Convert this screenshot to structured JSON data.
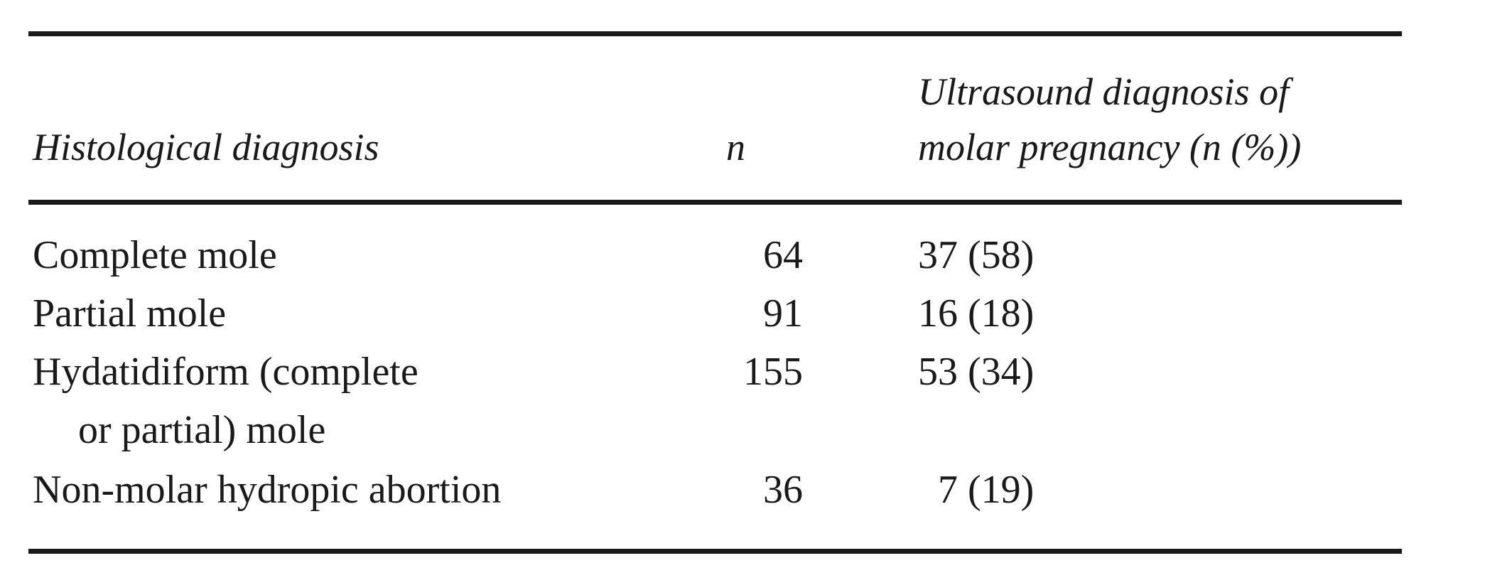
{
  "table": {
    "headers": {
      "histological_diagnosis": "Histological diagnosis",
      "n": "n",
      "ultrasound_line1": "Ultrasound diagnosis of",
      "ultrasound_line2": "molar pregnancy (n (%))"
    },
    "rows": [
      {
        "label": "Complete mole",
        "label_cont": "",
        "n": "64",
        "ultrasound": "37 (58)"
      },
      {
        "label": "Partial mole",
        "label_cont": "",
        "n": "91",
        "ultrasound": "16 (18)"
      },
      {
        "label": "Hydatidiform (complete",
        "label_cont": "or partial) mole",
        "n": "155",
        "ultrasound": "53 (34)"
      },
      {
        "label": "Non-molar hydropic abortion",
        "label_cont": "",
        "n": "36",
        "ultrasound": "7 (19)"
      }
    ]
  }
}
